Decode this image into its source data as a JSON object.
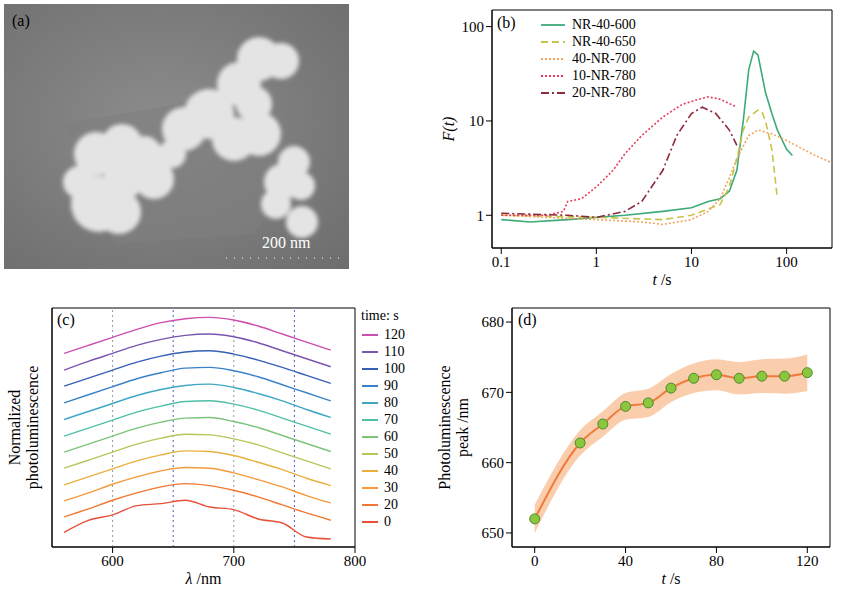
{
  "image": {
    "title": "(a)",
    "scale_bar": "200 nm"
  },
  "chart_data": [
    {
      "type": "line",
      "title": "(b)",
      "x_label": "t /s",
      "y_label": "F(t)",
      "log": true,
      "xlim": [
        0.08,
        300
      ],
      "xticks": [
        0.1,
        1,
        10,
        100
      ],
      "ylim": [
        0.45,
        150
      ],
      "yticks": [
        1,
        10,
        100
      ],
      "legend": "upper left",
      "series": [
        {
          "name": "NR-40-600",
          "color": "#3dab78",
          "line_style": "solid",
          "x": [
            0.1,
            0.2,
            0.5,
            1,
            2,
            5,
            10,
            15,
            20,
            25,
            30,
            35,
            40,
            45,
            50,
            60,
            70,
            80,
            100,
            115
          ],
          "values": [
            0.9,
            0.85,
            0.9,
            0.95,
            1.0,
            1.1,
            1.2,
            1.4,
            1.5,
            1.8,
            3,
            10,
            35,
            55,
            50,
            20,
            12,
            8,
            5,
            4.3
          ]
        },
        {
          "name": "NR-40-650",
          "color": "#c9c34a",
          "line_style": "dashed",
          "x": [
            0.1,
            1,
            5,
            10,
            20,
            25,
            30,
            35,
            40,
            50,
            55,
            60,
            70,
            80
          ],
          "values": [
            1.0,
            0.95,
            0.9,
            1.0,
            1.3,
            2,
            4,
            8,
            11,
            13,
            12.5,
            10,
            5,
            1.5
          ]
        },
        {
          "name": "40-NR-700",
          "color": "#f4a460",
          "line_style": "dotted",
          "x": [
            0.1,
            1,
            3,
            5,
            10,
            15,
            20,
            25,
            30,
            40,
            50,
            70,
            100,
            150,
            200,
            300
          ],
          "values": [
            1.0,
            0.9,
            0.85,
            0.8,
            0.9,
            1.1,
            1.5,
            2.5,
            4,
            7,
            8,
            7.3,
            6.2,
            5,
            4.3,
            3.6
          ]
        },
        {
          "name": "10-NR-780",
          "color": "#e83e5c",
          "line_style": "dotted",
          "x": [
            0.1,
            0.3,
            0.45,
            0.5,
            0.7,
            1,
            1.5,
            2,
            3,
            5,
            8,
            12,
            15,
            20,
            30
          ],
          "values": [
            1.0,
            1.0,
            1.1,
            1.4,
            1.5,
            2,
            3,
            4.5,
            7,
            11,
            15,
            17,
            18,
            17,
            14
          ]
        },
        {
          "name": "20-NR-780",
          "color": "#8b2a3a",
          "line_style": "dashdot",
          "x": [
            0.1,
            0.5,
            1,
            2,
            3,
            5,
            7,
            10,
            13,
            18,
            25,
            30
          ],
          "values": [
            1.05,
            1.0,
            0.95,
            1.1,
            1.4,
            3,
            7,
            12,
            14,
            12,
            8,
            5.5
          ]
        }
      ]
    },
    {
      "type": "line",
      "title": "(c)",
      "x_label": "λ /nm",
      "y_label": "Normalized photoluminescence",
      "legend_title": "time: s",
      "legend": "right",
      "tick_labels": "x",
      "x": [
        560,
        580,
        600,
        620,
        640,
        660,
        680,
        700,
        720,
        740,
        760,
        780
      ],
      "xlim": [
        550,
        800
      ],
      "xticks": [
        600,
        700,
        800
      ],
      "reference_lines": [
        600,
        650,
        700,
        750
      ],
      "series": [
        {
          "name": "0",
          "color": "#e8503a",
          "values": [
            0.52,
            0.7,
            0.78,
            0.92,
            0.95,
            1.0,
            0.9,
            0.86,
            0.72,
            0.66,
            0.45,
            0.42
          ]
        },
        {
          "name": "20",
          "color": "#f07830",
          "values": [
            0.5,
            0.62,
            0.75,
            0.86,
            0.95,
            1.0,
            0.97,
            0.9,
            0.8,
            0.68,
            0.56,
            0.45
          ]
        },
        {
          "name": "30",
          "color": "#f59a3c",
          "values": [
            0.49,
            0.61,
            0.74,
            0.85,
            0.94,
            0.99,
            0.98,
            0.91,
            0.81,
            0.7,
            0.57,
            0.46
          ]
        },
        {
          "name": "40",
          "color": "#e8b040",
          "values": [
            0.48,
            0.6,
            0.72,
            0.84,
            0.93,
            0.99,
            0.98,
            0.92,
            0.82,
            0.71,
            0.58,
            0.47
          ]
        },
        {
          "name": "50",
          "color": "#b9c45a",
          "values": [
            0.48,
            0.6,
            0.72,
            0.84,
            0.93,
            0.99,
            0.98,
            0.92,
            0.83,
            0.71,
            0.59,
            0.47
          ]
        },
        {
          "name": "60",
          "color": "#7cc47a",
          "values": [
            0.47,
            0.59,
            0.71,
            0.83,
            0.92,
            0.98,
            0.99,
            0.93,
            0.84,
            0.72,
            0.6,
            0.48
          ]
        },
        {
          "name": "70",
          "color": "#4fbfa8",
          "values": [
            0.46,
            0.58,
            0.7,
            0.82,
            0.91,
            0.98,
            0.99,
            0.94,
            0.85,
            0.73,
            0.61,
            0.49
          ]
        },
        {
          "name": "80",
          "color": "#3fa7c4",
          "values": [
            0.46,
            0.58,
            0.7,
            0.82,
            0.91,
            0.97,
            0.99,
            0.94,
            0.85,
            0.74,
            0.61,
            0.49
          ]
        },
        {
          "name": "90",
          "color": "#3a82c8",
          "values": [
            0.46,
            0.58,
            0.7,
            0.82,
            0.91,
            0.98,
            0.99,
            0.94,
            0.85,
            0.73,
            0.61,
            0.49
          ]
        },
        {
          "name": "100",
          "color": "#3560b5",
          "values": [
            0.46,
            0.58,
            0.7,
            0.82,
            0.91,
            0.97,
            0.99,
            0.94,
            0.85,
            0.74,
            0.62,
            0.5
          ]
        },
        {
          "name": "110",
          "color": "#7a55b0",
          "values": [
            0.45,
            0.58,
            0.7,
            0.82,
            0.91,
            0.97,
            0.99,
            0.95,
            0.86,
            0.74,
            0.62,
            0.5
          ]
        },
        {
          "name": "120",
          "color": "#cc4fb0",
          "values": [
            0.45,
            0.57,
            0.69,
            0.81,
            0.91,
            0.97,
            0.99,
            0.95,
            0.86,
            0.74,
            0.62,
            0.5
          ]
        }
      ]
    },
    {
      "type": "line",
      "title": "(d)",
      "x_label": "t /s",
      "y_label": "Photoluminescence peak /nm",
      "x": [
        0,
        20,
        30,
        40,
        50,
        60,
        70,
        80,
        90,
        100,
        110,
        120
      ],
      "values": [
        652,
        662.8,
        665.5,
        668,
        668.5,
        670.6,
        672,
        672.5,
        672,
        672.3,
        672.3,
        672.8
      ],
      "error": [
        2,
        1.8,
        1.8,
        1.9,
        2,
        2,
        2.1,
        2.2,
        2.3,
        2.4,
        2.5,
        2.6
      ],
      "xlim": [
        -10,
        130
      ],
      "xticks": [
        0,
        40,
        80,
        120
      ],
      "ylim": [
        648,
        682
      ],
      "yticks": [
        650,
        660,
        670,
        680
      ],
      "color": "#f07a3a",
      "marker": "circle"
    }
  ]
}
